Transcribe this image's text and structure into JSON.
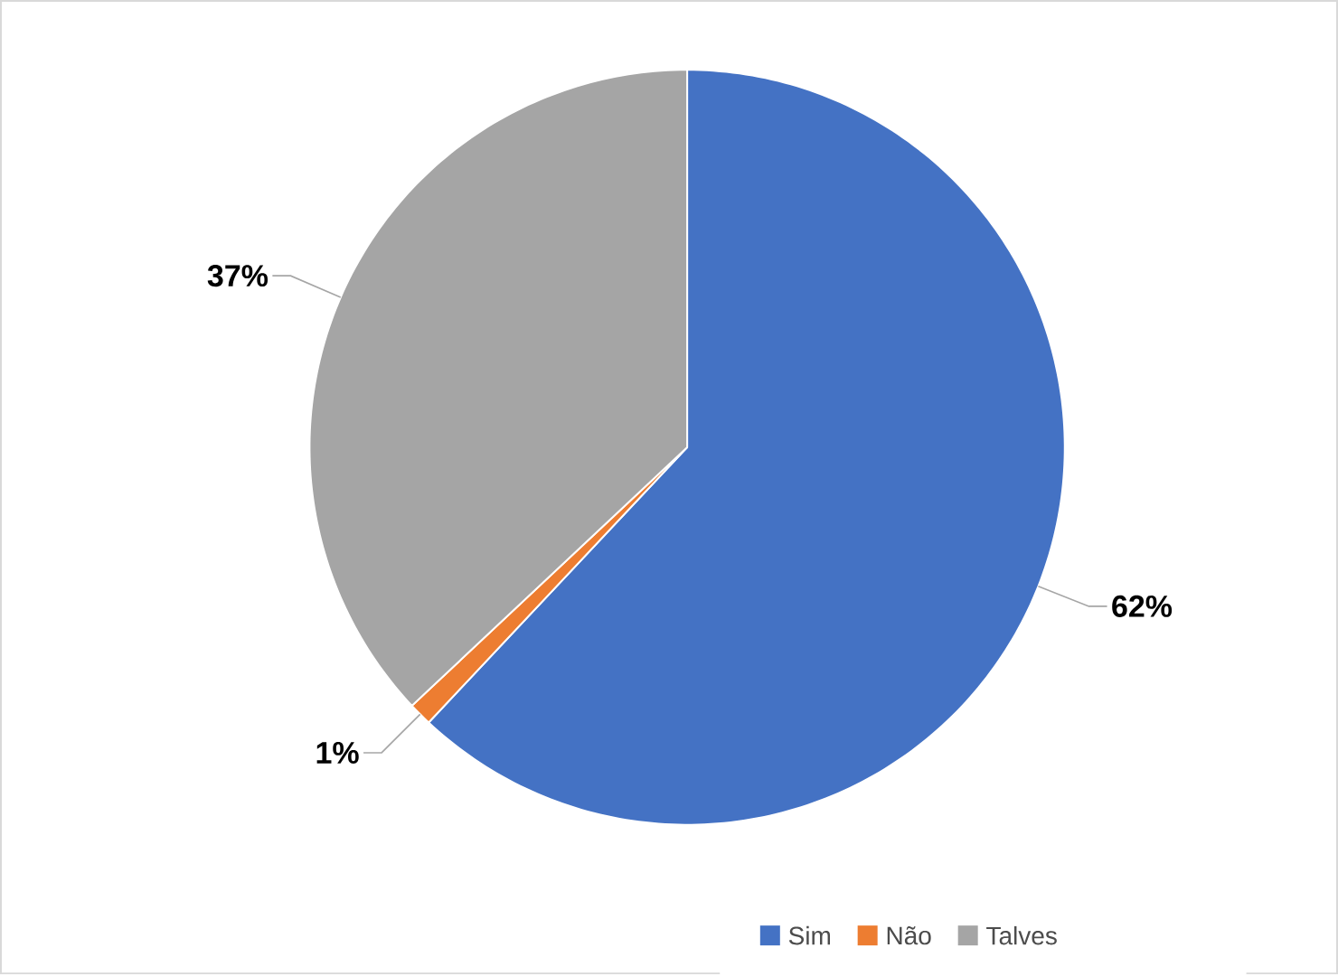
{
  "chart_data": {
    "type": "pie",
    "categories": [
      "Sim",
      "Não",
      "Talves"
    ],
    "values": [
      62,
      1,
      37
    ],
    "colors": [
      "#4472c4",
      "#ed7d31",
      "#a5a5a5"
    ],
    "value_labels": [
      "62%",
      "1%",
      "37%"
    ],
    "legend": "bottom right"
  }
}
